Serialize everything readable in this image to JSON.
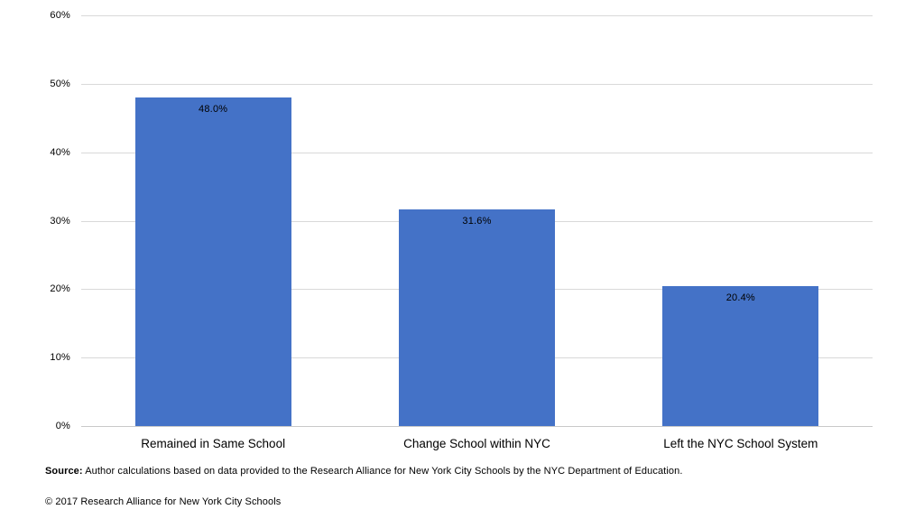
{
  "chart_data": {
    "type": "bar",
    "categories": [
      "Remained in Same School",
      "Change School within NYC",
      "Left the NYC School System"
    ],
    "values": [
      48.0,
      31.6,
      20.4
    ],
    "value_labels": [
      "48.0%",
      "31.6%",
      "20.4%"
    ],
    "title": "",
    "xlabel": "",
    "ylabel": "",
    "ylim": [
      0,
      60
    ],
    "ytick_step": 10,
    "ytick_labels": [
      "0%",
      "10%",
      "20%",
      "30%",
      "40%",
      "50%",
      "60%"
    ],
    "grid": true,
    "legend": "none",
    "bar_color": "#4472c7",
    "gridline_color": "#d9d9d9",
    "label_color": "#000000"
  },
  "footer": {
    "source_label": "Source:",
    "source_text": " Author calculations based on data provided to the Research Alliance for New York City Schools by the NYC Department of Education.",
    "copyright": "© 2017 Research Alliance for New York City Schools"
  }
}
